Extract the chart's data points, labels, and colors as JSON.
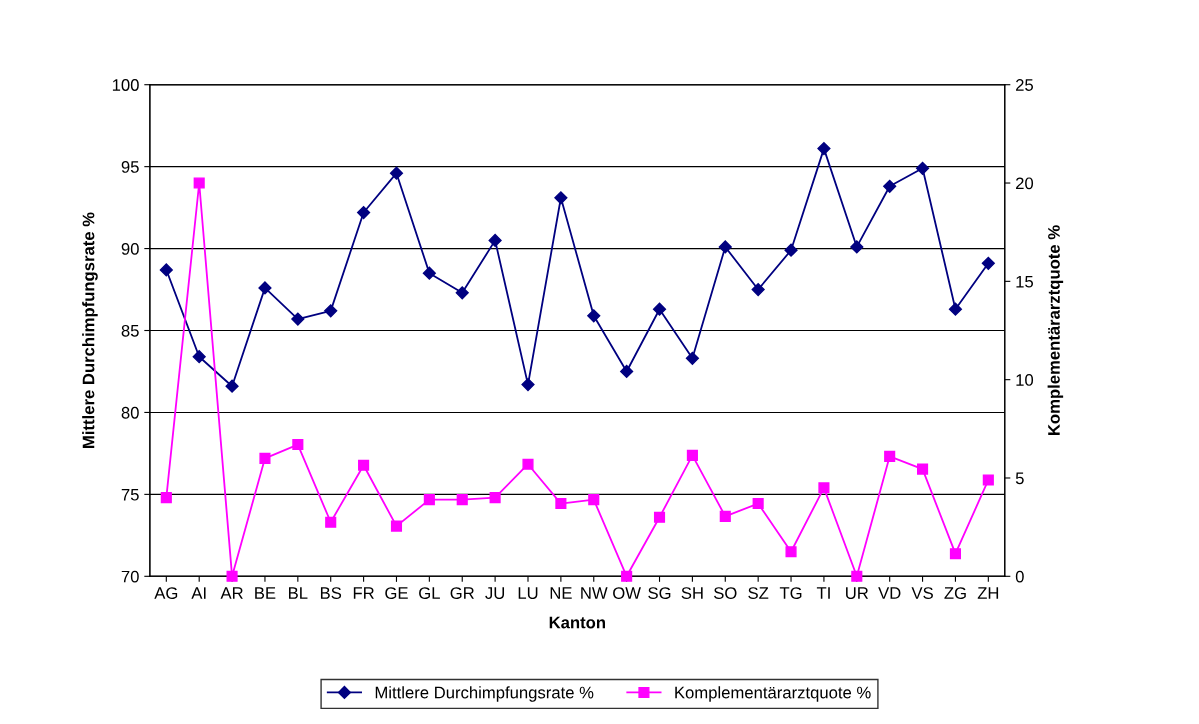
{
  "chart_data": {
    "type": "line",
    "xlabel": "Kanton",
    "ylabel": "Mittlere Durchimpfungsrate %",
    "y2label": "Komplementärarztquote %",
    "categories": [
      "AG",
      "AI",
      "AR",
      "BE",
      "BL",
      "BS",
      "FR",
      "GE",
      "GL",
      "GR",
      "JU",
      "LU",
      "NE",
      "NW",
      "OW",
      "SG",
      "SH",
      "SO",
      "SZ",
      "TG",
      "TI",
      "UR",
      "VD",
      "VS",
      "ZG",
      "ZH"
    ],
    "series": [
      {
        "name": "Mittlere Durchimpfungsrate %",
        "color": "#000080",
        "marker": "diamond",
        "values": [
          88.7,
          83.4,
          81.6,
          87.6,
          85.7,
          86.2,
          92.2,
          94.6,
          88.5,
          87.3,
          90.5,
          81.7,
          93.1,
          85.9,
          82.5,
          86.3,
          83.3,
          90.1,
          87.5,
          89.9,
          96.1,
          90.1,
          93.8,
          94.9,
          86.3,
          89.1
        ]
      },
      {
        "name": "Komplementärarztquote %",
        "color": "#ff00ff",
        "marker": "square",
        "axis": "y2",
        "values": [
          4.0,
          20.0,
          0,
          6.0,
          6.7,
          2.75,
          5.65,
          2.55,
          3.9,
          3.9,
          4.0,
          5.7,
          3.7,
          3.9,
          0,
          3.0,
          6.15,
          3.05,
          3.7,
          1.25,
          4.5,
          0,
          6.1,
          5.45,
          1.15,
          4.9
        ]
      }
    ],
    "ylim": [
      70,
      100
    ],
    "yticks": [
      70,
      75,
      80,
      85,
      90,
      95,
      100
    ],
    "y2lim": [
      0,
      25
    ],
    "y2ticks": [
      0,
      5,
      10,
      15,
      20,
      25
    ],
    "grid": "y",
    "legend": "bottom"
  }
}
